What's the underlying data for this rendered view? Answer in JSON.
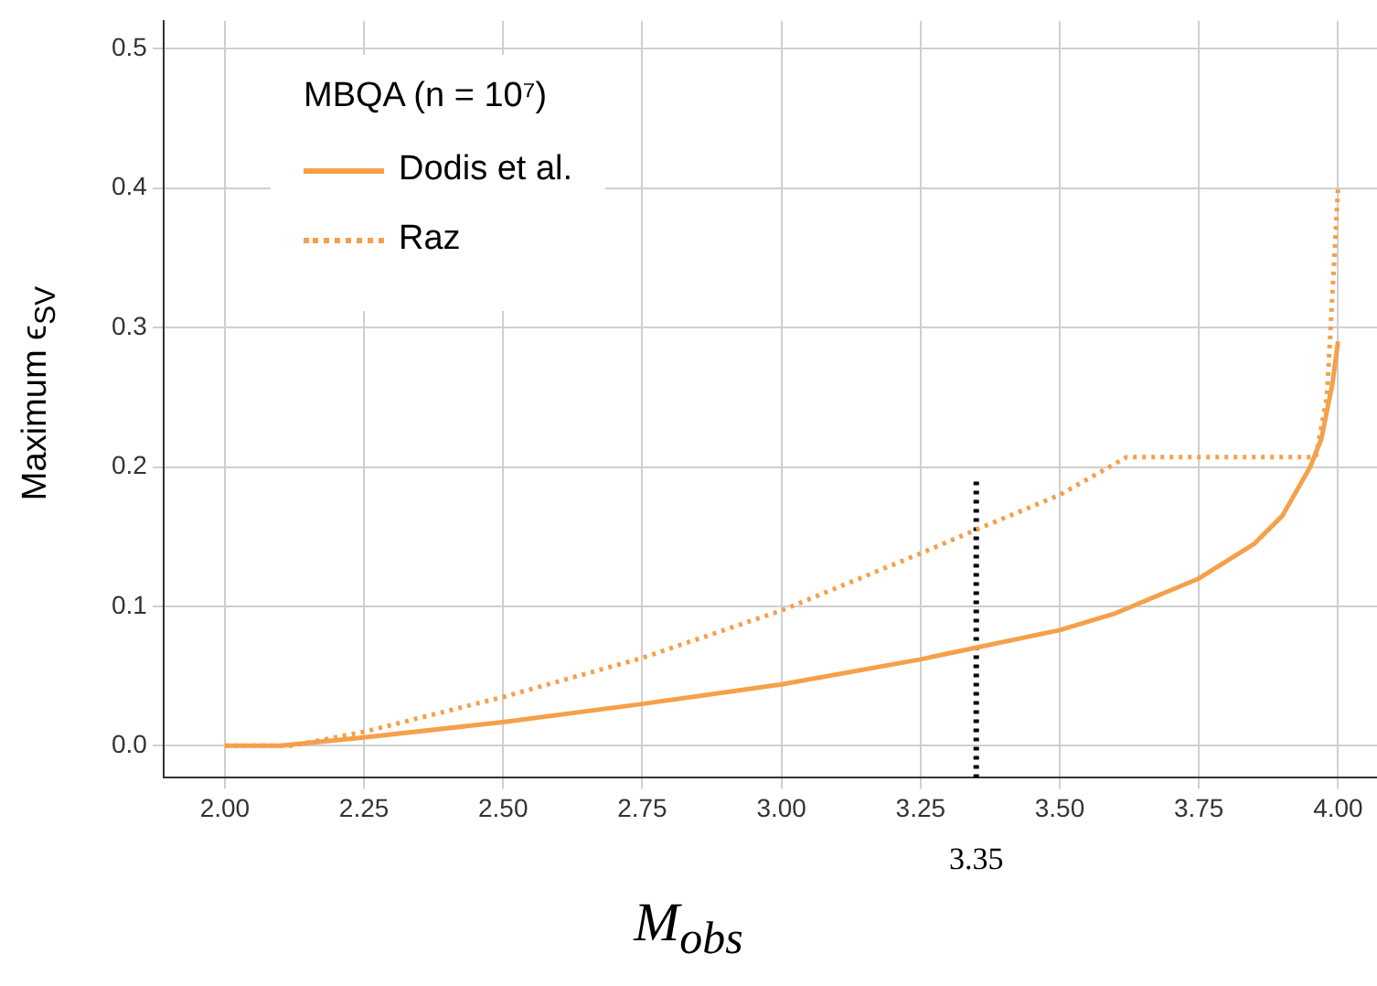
{
  "chart_data": {
    "type": "line",
    "legend_title": "MBQA (n = 10⁷)",
    "xlabel": "M$_{obs}$",
    "ylabel": "Maximum ϵ$_{SV}$",
    "xlim": [
      1.89,
      4.07
    ],
    "ylim": [
      -0.023,
      0.52
    ],
    "xticks": [
      {
        "value": 2,
        "label": "2.00"
      },
      {
        "value": 2.25,
        "label": "2.25"
      },
      {
        "value": 2.5,
        "label": "2.50"
      },
      {
        "value": 2.75,
        "label": "2.75"
      },
      {
        "value": 3,
        "label": "3.00"
      },
      {
        "value": 3.25,
        "label": "3.25"
      },
      {
        "value": 3.5,
        "label": "3.50"
      },
      {
        "value": 3.75,
        "label": "3.75"
      },
      {
        "value": 4,
        "label": "4.00"
      }
    ],
    "yticks": [
      {
        "value": 0,
        "label": "0.0"
      },
      {
        "value": 0.1,
        "label": "0.1"
      },
      {
        "value": 0.2,
        "label": "0.2"
      },
      {
        "value": 0.3,
        "label": "0.3"
      },
      {
        "value": 0.4,
        "label": "0.4"
      },
      {
        "value": 0.5,
        "label": "0.5"
      }
    ],
    "grid": true,
    "legend": "top left",
    "marker": "none",
    "series": [
      {
        "name": "Dodis et al.",
        "color": "#f5a04a",
        "line_style": "solid",
        "x": [
          2.0,
          2.1,
          2.25,
          2.5,
          2.75,
          3.0,
          3.25,
          3.5,
          3.6,
          3.75,
          3.85,
          3.9,
          3.95,
          3.97,
          3.99,
          4.0
        ],
        "values": [
          0.0,
          0.0,
          0.006,
          0.017,
          0.03,
          0.044,
          0.062,
          0.083,
          0.095,
          0.12,
          0.145,
          0.165,
          0.2,
          0.22,
          0.26,
          0.29
        ]
      },
      {
        "name": "Raz",
        "color": "#f5a04a",
        "line_style": "dotted",
        "x": [
          2.0,
          2.12,
          2.25,
          2.5,
          2.75,
          3.0,
          3.25,
          3.35,
          3.5,
          3.62,
          3.75,
          3.96,
          3.98,
          4.0
        ],
        "values": [
          0.0,
          0.0,
          0.01,
          0.035,
          0.063,
          0.097,
          0.138,
          0.155,
          0.18,
          0.207,
          0.207,
          0.207,
          0.25,
          0.4
        ]
      },
      {
        "color": "#000000",
        "line_style": "dotted",
        "x": [
          3.35,
          3.35
        ],
        "values": [
          -0.023,
          0.19
        ]
      }
    ],
    "annotations": [
      "3.35"
    ]
  }
}
